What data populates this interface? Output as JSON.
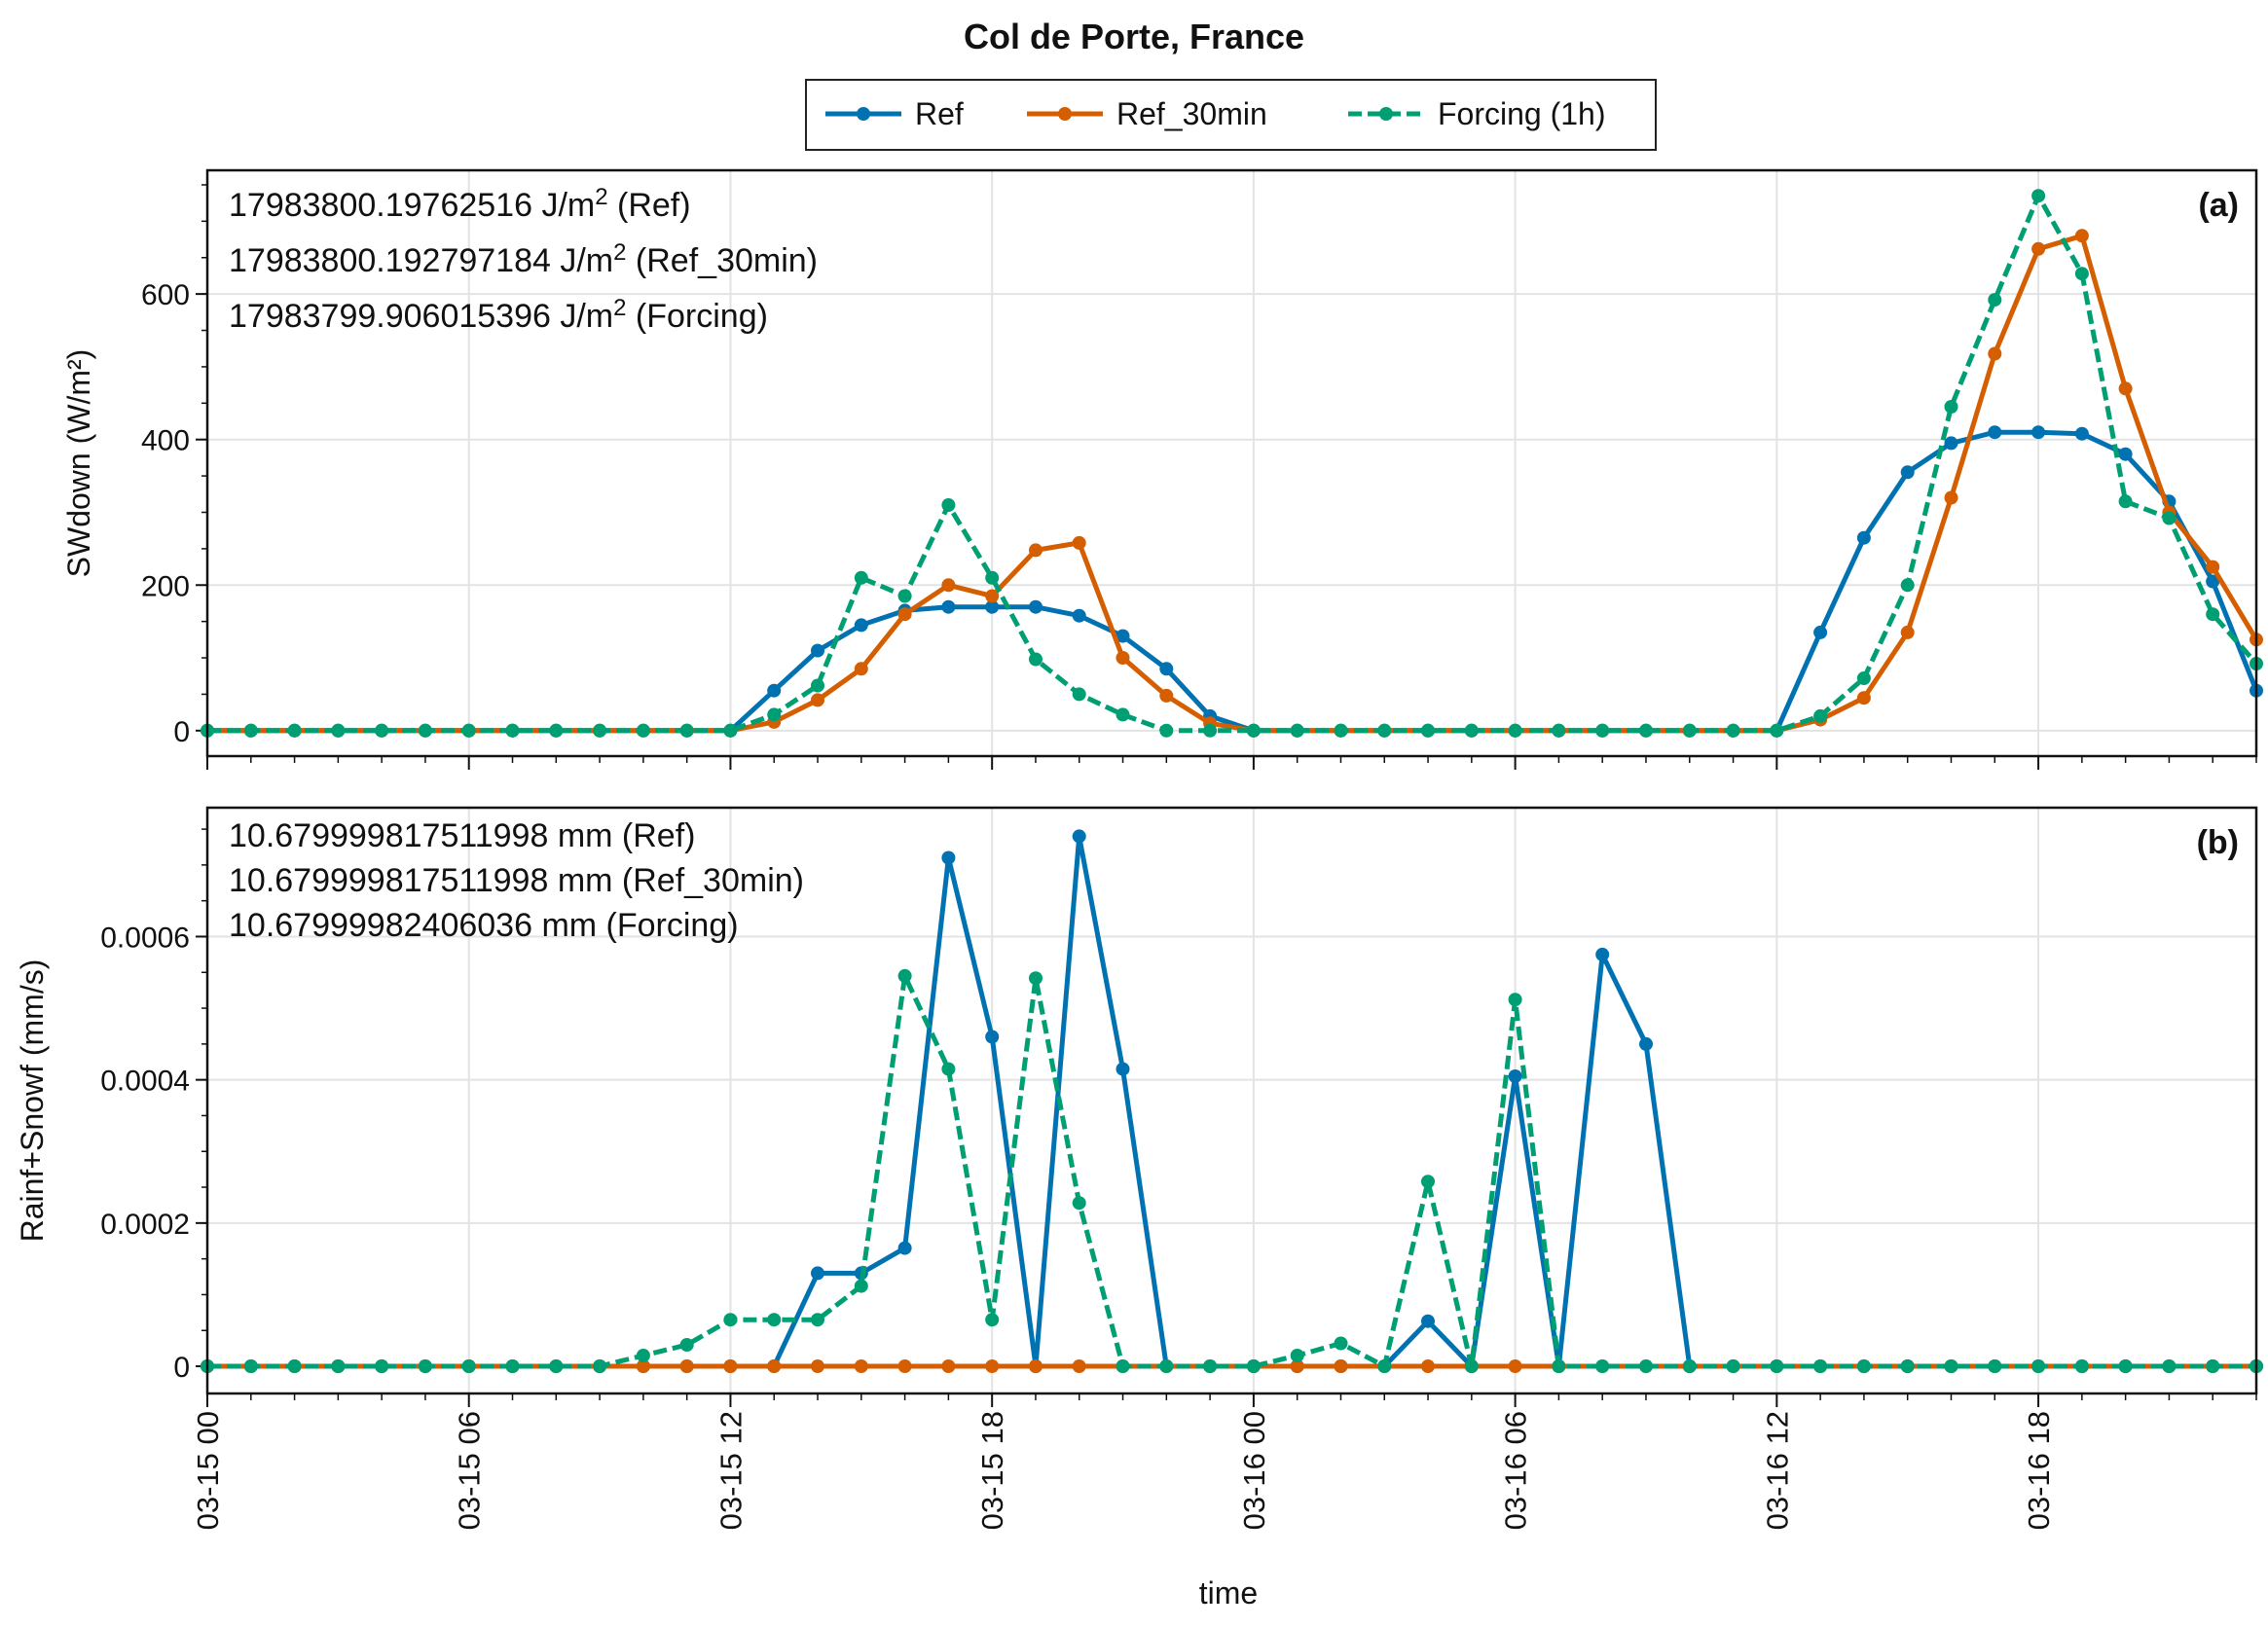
{
  "figure": {
    "title": "Col de Porte, France",
    "legend": {
      "placement": "top-center",
      "entries": [
        {
          "name": "Ref",
          "color": "#0072b2",
          "dash": "solid"
        },
        {
          "name": "Ref_30min",
          "color": "#d55e00",
          "dash": "solid"
        },
        {
          "name": "Forcing (1h)",
          "color": "#009e73",
          "dash": "dashed"
        }
      ]
    },
    "xlabel": "time",
    "xticks": [
      "03-15 00",
      "03-15 06",
      "03-15 12",
      "03-15 18",
      "03-16 00",
      "03-16 06",
      "03-16 12",
      "03-16 18"
    ]
  },
  "chart_data": [
    {
      "panel": "(a)",
      "type": "line",
      "ylabel": "SWdown (W/m²)",
      "ylim": [
        -35,
        770
      ],
      "yticks": [
        {
          "v": 0,
          "label": "0"
        },
        {
          "v": 200,
          "label": "200"
        },
        {
          "v": 400,
          "label": "400"
        },
        {
          "v": 600,
          "label": "600"
        }
      ],
      "grid": true,
      "annotations": [
        {
          "value": "17983800.19762516 J/m",
          "sup": "2",
          "suffix": " (Ref)"
        },
        {
          "value": "17983800.192797184 J/m",
          "sup": "2",
          "suffix": " (Ref_30min)"
        },
        {
          "value": "17983799.906015396 J/m",
          "sup": "2",
          "suffix": " (Forcing)"
        }
      ],
      "x_unit": "hours since 03-15 00",
      "series": [
        {
          "name": "Ref",
          "x": [
            0,
            1,
            2,
            3,
            4,
            5,
            6,
            7,
            8,
            9,
            10,
            11,
            12,
            13,
            14,
            15,
            16,
            17,
            18,
            19,
            20,
            21,
            22,
            23,
            24,
            25,
            26,
            27,
            28,
            29,
            30,
            31,
            32,
            33,
            34,
            35,
            36,
            37,
            38,
            39,
            40,
            41,
            42,
            43,
            44,
            45,
            46,
            47
          ],
          "values": [
            0,
            0,
            0,
            0,
            0,
            0,
            0,
            0,
            0,
            0,
            0,
            0,
            0,
            55,
            110,
            145,
            165,
            170,
            170,
            170,
            158,
            130,
            85,
            20,
            0,
            0,
            0,
            0,
            0,
            0,
            0,
            0,
            0,
            0,
            0,
            0,
            0,
            135,
            265,
            355,
            395,
            410,
            410,
            408,
            380,
            315,
            205,
            55
          ]
        },
        {
          "name": "Ref_30min",
          "x": [
            0,
            1,
            2,
            3,
            4,
            5,
            6,
            7,
            8,
            9,
            10,
            11,
            12,
            13,
            14,
            15,
            16,
            17,
            18,
            19,
            20,
            21,
            22,
            23,
            24,
            25,
            26,
            27,
            28,
            29,
            30,
            31,
            32,
            33,
            34,
            35,
            36,
            37,
            38,
            39,
            40,
            41,
            42,
            43,
            44,
            45,
            46,
            47
          ],
          "values": [
            0,
            0,
            0,
            0,
            0,
            0,
            0,
            0,
            0,
            0,
            0,
            0,
            0,
            12,
            42,
            85,
            160,
            200,
            185,
            248,
            258,
            100,
            48,
            10,
            0,
            0,
            0,
            0,
            0,
            0,
            0,
            0,
            0,
            0,
            0,
            0,
            0,
            15,
            45,
            135,
            320,
            518,
            662,
            680,
            470,
            300,
            225,
            125
          ]
        },
        {
          "name": "Forcing (1h)",
          "x": [
            0,
            1,
            2,
            3,
            4,
            5,
            6,
            7,
            8,
            9,
            10,
            11,
            12,
            13,
            14,
            15,
            16,
            17,
            18,
            19,
            20,
            21,
            22,
            23,
            24,
            25,
            26,
            27,
            28,
            29,
            30,
            31,
            32,
            33,
            34,
            35,
            36,
            37,
            38,
            39,
            40,
            41,
            42,
            43,
            44,
            45,
            46,
            47
          ],
          "values": [
            0,
            0,
            0,
            0,
            0,
            0,
            0,
            0,
            0,
            0,
            0,
            0,
            0,
            22,
            62,
            210,
            185,
            310,
            210,
            98,
            50,
            22,
            0,
            0,
            0,
            0,
            0,
            0,
            0,
            0,
            0,
            0,
            0,
            0,
            0,
            0,
            0,
            20,
            72,
            200,
            445,
            592,
            735,
            628,
            315,
            292,
            160,
            92
          ]
        }
      ]
    },
    {
      "panel": "(b)",
      "type": "line",
      "ylabel": "Rainf+Snowf (mm/s)",
      "ylim": [
        -3.8e-05,
        0.00078
      ],
      "yticks": [
        {
          "v": 0,
          "label": "0"
        },
        {
          "v": 0.0002,
          "label": "0.0002"
        },
        {
          "v": 0.0004,
          "label": "0.0004"
        },
        {
          "v": 0.0006,
          "label": "0.0006"
        }
      ],
      "grid": true,
      "annotations": [
        {
          "value": "10.679999817511998 mm (Ref)",
          "sup": "",
          "suffix": ""
        },
        {
          "value": "10.679999817511998 mm (Ref_30min)",
          "sup": "",
          "suffix": ""
        },
        {
          "value": "10.67999982406036 mm (Forcing)",
          "sup": "",
          "suffix": ""
        }
      ],
      "x_unit": "hours since 03-15 00",
      "series": [
        {
          "name": "Ref",
          "x": [
            0,
            1,
            2,
            3,
            4,
            5,
            6,
            7,
            8,
            9,
            10,
            11,
            12,
            13,
            14,
            15,
            16,
            17,
            18,
            19,
            20,
            21,
            22,
            23,
            24,
            25,
            26,
            27,
            28,
            29,
            30,
            31,
            32,
            33,
            34,
            35,
            36,
            37,
            38,
            39,
            40,
            41,
            42,
            43,
            44,
            45,
            46,
            47
          ],
          "values": [
            0,
            0,
            0,
            0,
            0,
            0,
            0,
            0,
            0,
            0,
            0,
            0,
            0,
            0,
            0.00013,
            0.00013,
            0.000165,
            0.00071,
            0.00046,
            0,
            0.00074,
            0.000415,
            0,
            0,
            0,
            0,
            0,
            0,
            6.3e-05,
            0,
            0.000405,
            0,
            0.000575,
            0.00045,
            0,
            0,
            0,
            0,
            0,
            0,
            0,
            0,
            0,
            0,
            0,
            0,
            0,
            0
          ]
        },
        {
          "name": "Ref_30min",
          "x": [
            0,
            1,
            2,
            3,
            4,
            5,
            6,
            7,
            8,
            9,
            10,
            11,
            12,
            13,
            14,
            15,
            16,
            17,
            18,
            19,
            20,
            21,
            22,
            23,
            24,
            25,
            26,
            27,
            28,
            29,
            30,
            31,
            32,
            33,
            34,
            35,
            36,
            37,
            38,
            39,
            40,
            41,
            42,
            43,
            44,
            45,
            46,
            47
          ],
          "values": [
            0,
            0,
            0,
            0,
            0,
            0,
            0,
            0,
            0,
            0,
            0,
            0,
            0,
            0,
            0,
            0,
            0,
            0,
            0,
            0,
            0,
            0,
            0,
            0,
            0,
            0,
            0,
            0,
            0,
            0,
            0,
            0,
            0,
            0,
            0,
            0,
            0,
            0,
            0,
            0,
            0,
            0,
            0,
            0,
            0,
            0,
            0,
            0
          ]
        },
        {
          "name": "Forcing (1h)",
          "x": [
            0,
            1,
            2,
            3,
            4,
            5,
            6,
            7,
            8,
            9,
            10,
            11,
            12,
            13,
            14,
            15,
            16,
            17,
            18,
            19,
            20,
            21,
            22,
            23,
            24,
            25,
            26,
            27,
            28,
            29,
            30,
            31,
            32,
            33,
            34,
            35,
            36,
            37,
            38,
            39,
            40,
            41,
            42,
            43,
            44,
            45,
            46,
            47
          ],
          "values": [
            0,
            0,
            0,
            0,
            0,
            0,
            0,
            0,
            0,
            0,
            1.5e-05,
            3e-05,
            6.5e-05,
            6.5e-05,
            6.5e-05,
            0.000112,
            0.000545,
            0.000415,
            6.5e-05,
            0.000542,
            0.000228,
            0,
            0,
            0,
            0,
            1.5e-05,
            3.2e-05,
            0,
            0.000258,
            0,
            0.000512,
            0,
            0,
            0,
            0,
            0,
            0,
            0,
            0,
            0,
            0,
            0,
            0,
            0,
            0,
            0,
            0,
            0
          ]
        }
      ]
    }
  ]
}
